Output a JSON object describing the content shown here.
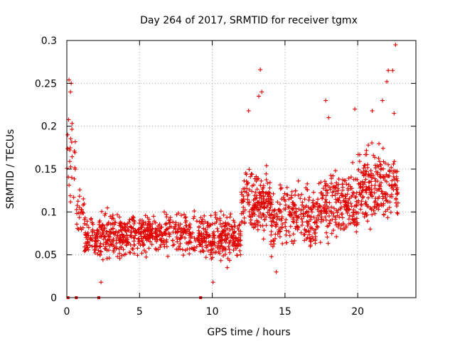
{
  "chart_data": {
    "type": "scatter",
    "title": "Day 264 of 2017, SRMTID for receiver tgmx",
    "xlabel": "GPS time / hours",
    "ylabel": "SRMTID / TECUs",
    "xlim": [
      0,
      24
    ],
    "ylim": [
      0,
      0.3
    ],
    "xticks": [
      0,
      5,
      10,
      15,
      20
    ],
    "xtick_labels": [
      "0",
      "5",
      "10",
      "15",
      "20"
    ],
    "yticks": [
      0,
      0.05,
      0.1,
      0.15,
      0.2,
      0.25,
      0.3
    ],
    "ytick_labels": [
      "0",
      "0.05",
      "0.1",
      "0.15",
      "0.2",
      "0.25",
      "0.3"
    ],
    "grid": true,
    "marker": "+",
    "color": "#e00000",
    "series": [
      {
        "name": "SRMTID",
        "segments": [
          {
            "x0": 0.0,
            "x1": 0.6,
            "center": 0.17,
            "spread": 0.09,
            "count": 25
          },
          {
            "x0": 0.6,
            "x1": 1.2,
            "center": 0.1,
            "spread": 0.04,
            "count": 25
          },
          {
            "x0": 1.2,
            "x1": 5.0,
            "center": 0.072,
            "spread": 0.042,
            "count": 300
          },
          {
            "x0": 5.0,
            "x1": 9.5,
            "center": 0.075,
            "spread": 0.04,
            "count": 300
          },
          {
            "x0": 9.5,
            "x1": 12.0,
            "center": 0.072,
            "spread": 0.042,
            "count": 200
          },
          {
            "x0": 12.0,
            "x1": 14.0,
            "center": 0.11,
            "spread": 0.06,
            "count": 180
          },
          {
            "x0": 14.0,
            "x1": 17.5,
            "center": 0.095,
            "spread": 0.06,
            "count": 250
          },
          {
            "x0": 17.5,
            "x1": 20.0,
            "center": 0.11,
            "spread": 0.06,
            "count": 200
          },
          {
            "x0": 20.0,
            "x1": 22.8,
            "center": 0.13,
            "spread": 0.07,
            "count": 230
          }
        ],
        "notable_points": [
          {
            "x": 0.15,
            "y": 0.254
          },
          {
            "x": 0.3,
            "y": 0.25
          },
          {
            "x": 0.25,
            "y": 0.24
          },
          {
            "x": 13.3,
            "y": 0.266
          },
          {
            "x": 13.4,
            "y": 0.24
          },
          {
            "x": 13.2,
            "y": 0.235
          },
          {
            "x": 12.5,
            "y": 0.218
          },
          {
            "x": 17.8,
            "y": 0.23
          },
          {
            "x": 18.0,
            "y": 0.21
          },
          {
            "x": 19.8,
            "y": 0.22
          },
          {
            "x": 21.0,
            "y": 0.218
          },
          {
            "x": 21.7,
            "y": 0.23
          },
          {
            "x": 22.0,
            "y": 0.252
          },
          {
            "x": 22.1,
            "y": 0.265
          },
          {
            "x": 22.4,
            "y": 0.265
          },
          {
            "x": 22.6,
            "y": 0.295
          },
          {
            "x": 22.5,
            "y": 0.215
          },
          {
            "x": 10.05,
            "y": 0.018
          },
          {
            "x": 2.35,
            "y": 0.018
          },
          {
            "x": 14.4,
            "y": 0.03
          }
        ],
        "zero_points": [
          0.08,
          0.65,
          2.2,
          9.2
        ]
      }
    ]
  }
}
